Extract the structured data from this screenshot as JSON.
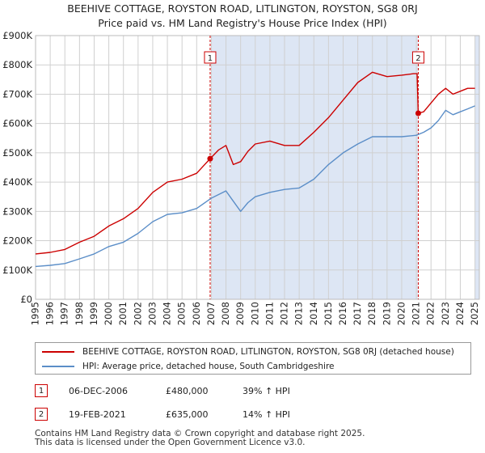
{
  "title_line1": "BEEHIVE COTTAGE, ROYSTON ROAD, LITLINGTON, ROYSTON, SG8 0RJ",
  "title_line2": "Price paid vs. HM Land Registry's House Price Index (HPI)",
  "colors": {
    "property": "#cc0000",
    "hpi": "#5b8ec8",
    "shade": "#dde6f4",
    "grid": "#d0d0d0"
  },
  "legend": {
    "property_label": "BEEHIVE COTTAGE, ROYSTON ROAD, LITLINGTON, ROYSTON, SG8 0RJ (detached house)",
    "hpi_label": "HPI: Average price, detached house, South Cambridgeshire"
  },
  "sales": [
    {
      "num": "1",
      "date": "06-DEC-2006",
      "price": "£480,000",
      "hpi": "39% ↑ HPI"
    },
    {
      "num": "2",
      "date": "19-FEB-2021",
      "price": "£635,000",
      "hpi": "14% ↑ HPI"
    }
  ],
  "footer": {
    "line1": "Contains HM Land Registry data © Crown copyright and database right 2025.",
    "line2": "This data is licensed under the Open Government Licence v3.0."
  },
  "chart_data": {
    "type": "line",
    "title": "Price paid vs. HM Land Registry's House Price Index (HPI)",
    "xlim": [
      1995,
      2025.3
    ],
    "ylim": [
      0,
      900000
    ],
    "y_ticks": [
      0,
      100000,
      200000,
      300000,
      400000,
      500000,
      600000,
      700000,
      800000,
      900000
    ],
    "y_tick_labels": [
      "£0",
      "£100K",
      "£200K",
      "£300K",
      "£400K",
      "£500K",
      "£600K",
      "£700K",
      "£800K",
      "£900K"
    ],
    "x_ticks": [
      1995,
      1996,
      1997,
      1998,
      1999,
      2000,
      2001,
      2002,
      2003,
      2004,
      2005,
      2006,
      2007,
      2008,
      2009,
      2010,
      2011,
      2012,
      2013,
      2014,
      2015,
      2016,
      2017,
      2018,
      2019,
      2020,
      2021,
      2022,
      2023,
      2024,
      2025
    ],
    "shaded_ranges": [
      [
        2007,
        2021.1
      ],
      [
        2025,
        2025.3
      ]
    ],
    "sale_markers": [
      {
        "label": "1",
        "x": 2006.92,
        "y": 480000
      },
      {
        "label": "2",
        "x": 2021.13,
        "y": 635000
      }
    ],
    "series": [
      {
        "name": "BEEHIVE COTTAGE, ROYSTON ROAD, LITLINGTON, ROYSTON, SG8 0RJ (detached house)",
        "color": "#cc0000",
        "x": [
          1995,
          1996,
          1997,
          1998,
          1999,
          2000,
          2001,
          2002,
          2003,
          2004,
          2005,
          2006,
          2006.92,
          2007.5,
          2008,
          2008.5,
          2009,
          2009.5,
          2010,
          2011,
          2012,
          2013,
          2014,
          2015,
          2016,
          2017,
          2018,
          2019,
          2020,
          2020.8,
          2021.05,
          2021.13,
          2021.5,
          2022,
          2022.5,
          2023,
          2023.5,
          2024,
          2024.5,
          2025
        ],
        "values": [
          155000,
          160000,
          170000,
          195000,
          215000,
          250000,
          275000,
          310000,
          365000,
          400000,
          410000,
          430000,
          480000,
          510000,
          525000,
          460000,
          470000,
          505000,
          530000,
          540000,
          525000,
          525000,
          570000,
          620000,
          680000,
          740000,
          775000,
          760000,
          765000,
          770000,
          770000,
          635000,
          640000,
          670000,
          700000,
          720000,
          700000,
          710000,
          720000,
          720000
        ]
      },
      {
        "name": "HPI: Average price, detached house, South Cambridgeshire",
        "color": "#5b8ec8",
        "x": [
          1995,
          1996,
          1997,
          1998,
          1999,
          2000,
          2001,
          2002,
          2003,
          2004,
          2005,
          2006,
          2007,
          2008,
          2008.5,
          2009,
          2009.5,
          2010,
          2011,
          2012,
          2013,
          2014,
          2015,
          2016,
          2017,
          2018,
          2019,
          2020,
          2021,
          2021.5,
          2022,
          2022.5,
          2023,
          2023.5,
          2024,
          2024.5,
          2025
        ],
        "values": [
          112000,
          116000,
          122000,
          138000,
          155000,
          180000,
          195000,
          225000,
          265000,
          290000,
          295000,
          310000,
          345000,
          370000,
          335000,
          300000,
          330000,
          350000,
          365000,
          375000,
          380000,
          410000,
          460000,
          500000,
          530000,
          555000,
          555000,
          555000,
          560000,
          570000,
          585000,
          610000,
          645000,
          630000,
          640000,
          650000,
          660000
        ]
      }
    ]
  }
}
